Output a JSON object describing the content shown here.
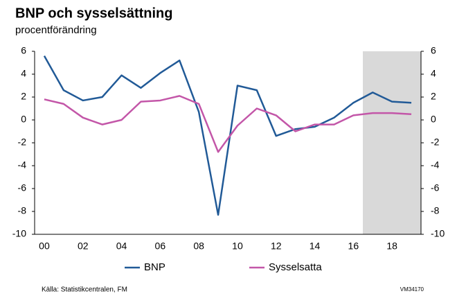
{
  "chart_data": {
    "type": "line",
    "title": "BNP och sysselsättning",
    "subtitle": "procentförändring",
    "categories": [
      "00",
      null,
      "02",
      null,
      "04",
      null,
      "06",
      null,
      "08",
      null,
      "10",
      null,
      "12",
      null,
      "14",
      null,
      "16",
      null,
      "18",
      null
    ],
    "series": [
      {
        "name": "BNP",
        "color": "#215a97",
        "values": [
          5.6,
          2.6,
          1.7,
          2.0,
          3.9,
          2.8,
          4.1,
          5.2,
          0.7,
          -8.3,
          3.0,
          2.6,
          -1.4,
          -0.8,
          -0.6,
          0.2,
          1.5,
          2.4,
          1.6,
          1.5
        ]
      },
      {
        "name": "Sysselsatta",
        "color": "#c356a8",
        "values": [
          1.8,
          1.4,
          0.2,
          -0.4,
          0.0,
          1.6,
          1.7,
          2.1,
          1.4,
          -2.8,
          -0.5,
          1.0,
          0.4,
          -1.0,
          -0.4,
          -0.4,
          0.4,
          0.6,
          0.6,
          0.5
        ]
      }
    ],
    "ylim": [
      -10,
      6
    ],
    "yticks": [
      -10,
      -8,
      -6,
      -4,
      -2,
      0,
      2,
      4,
      6
    ],
    "y2lim": [
      -10,
      6
    ],
    "y2ticks": [
      -10,
      -8,
      -6,
      -4,
      -2,
      0,
      2,
      4,
      6
    ],
    "legend": "bottom",
    "source": "Källa: Statistikcentralen, FM",
    "code": "VM34170"
  }
}
